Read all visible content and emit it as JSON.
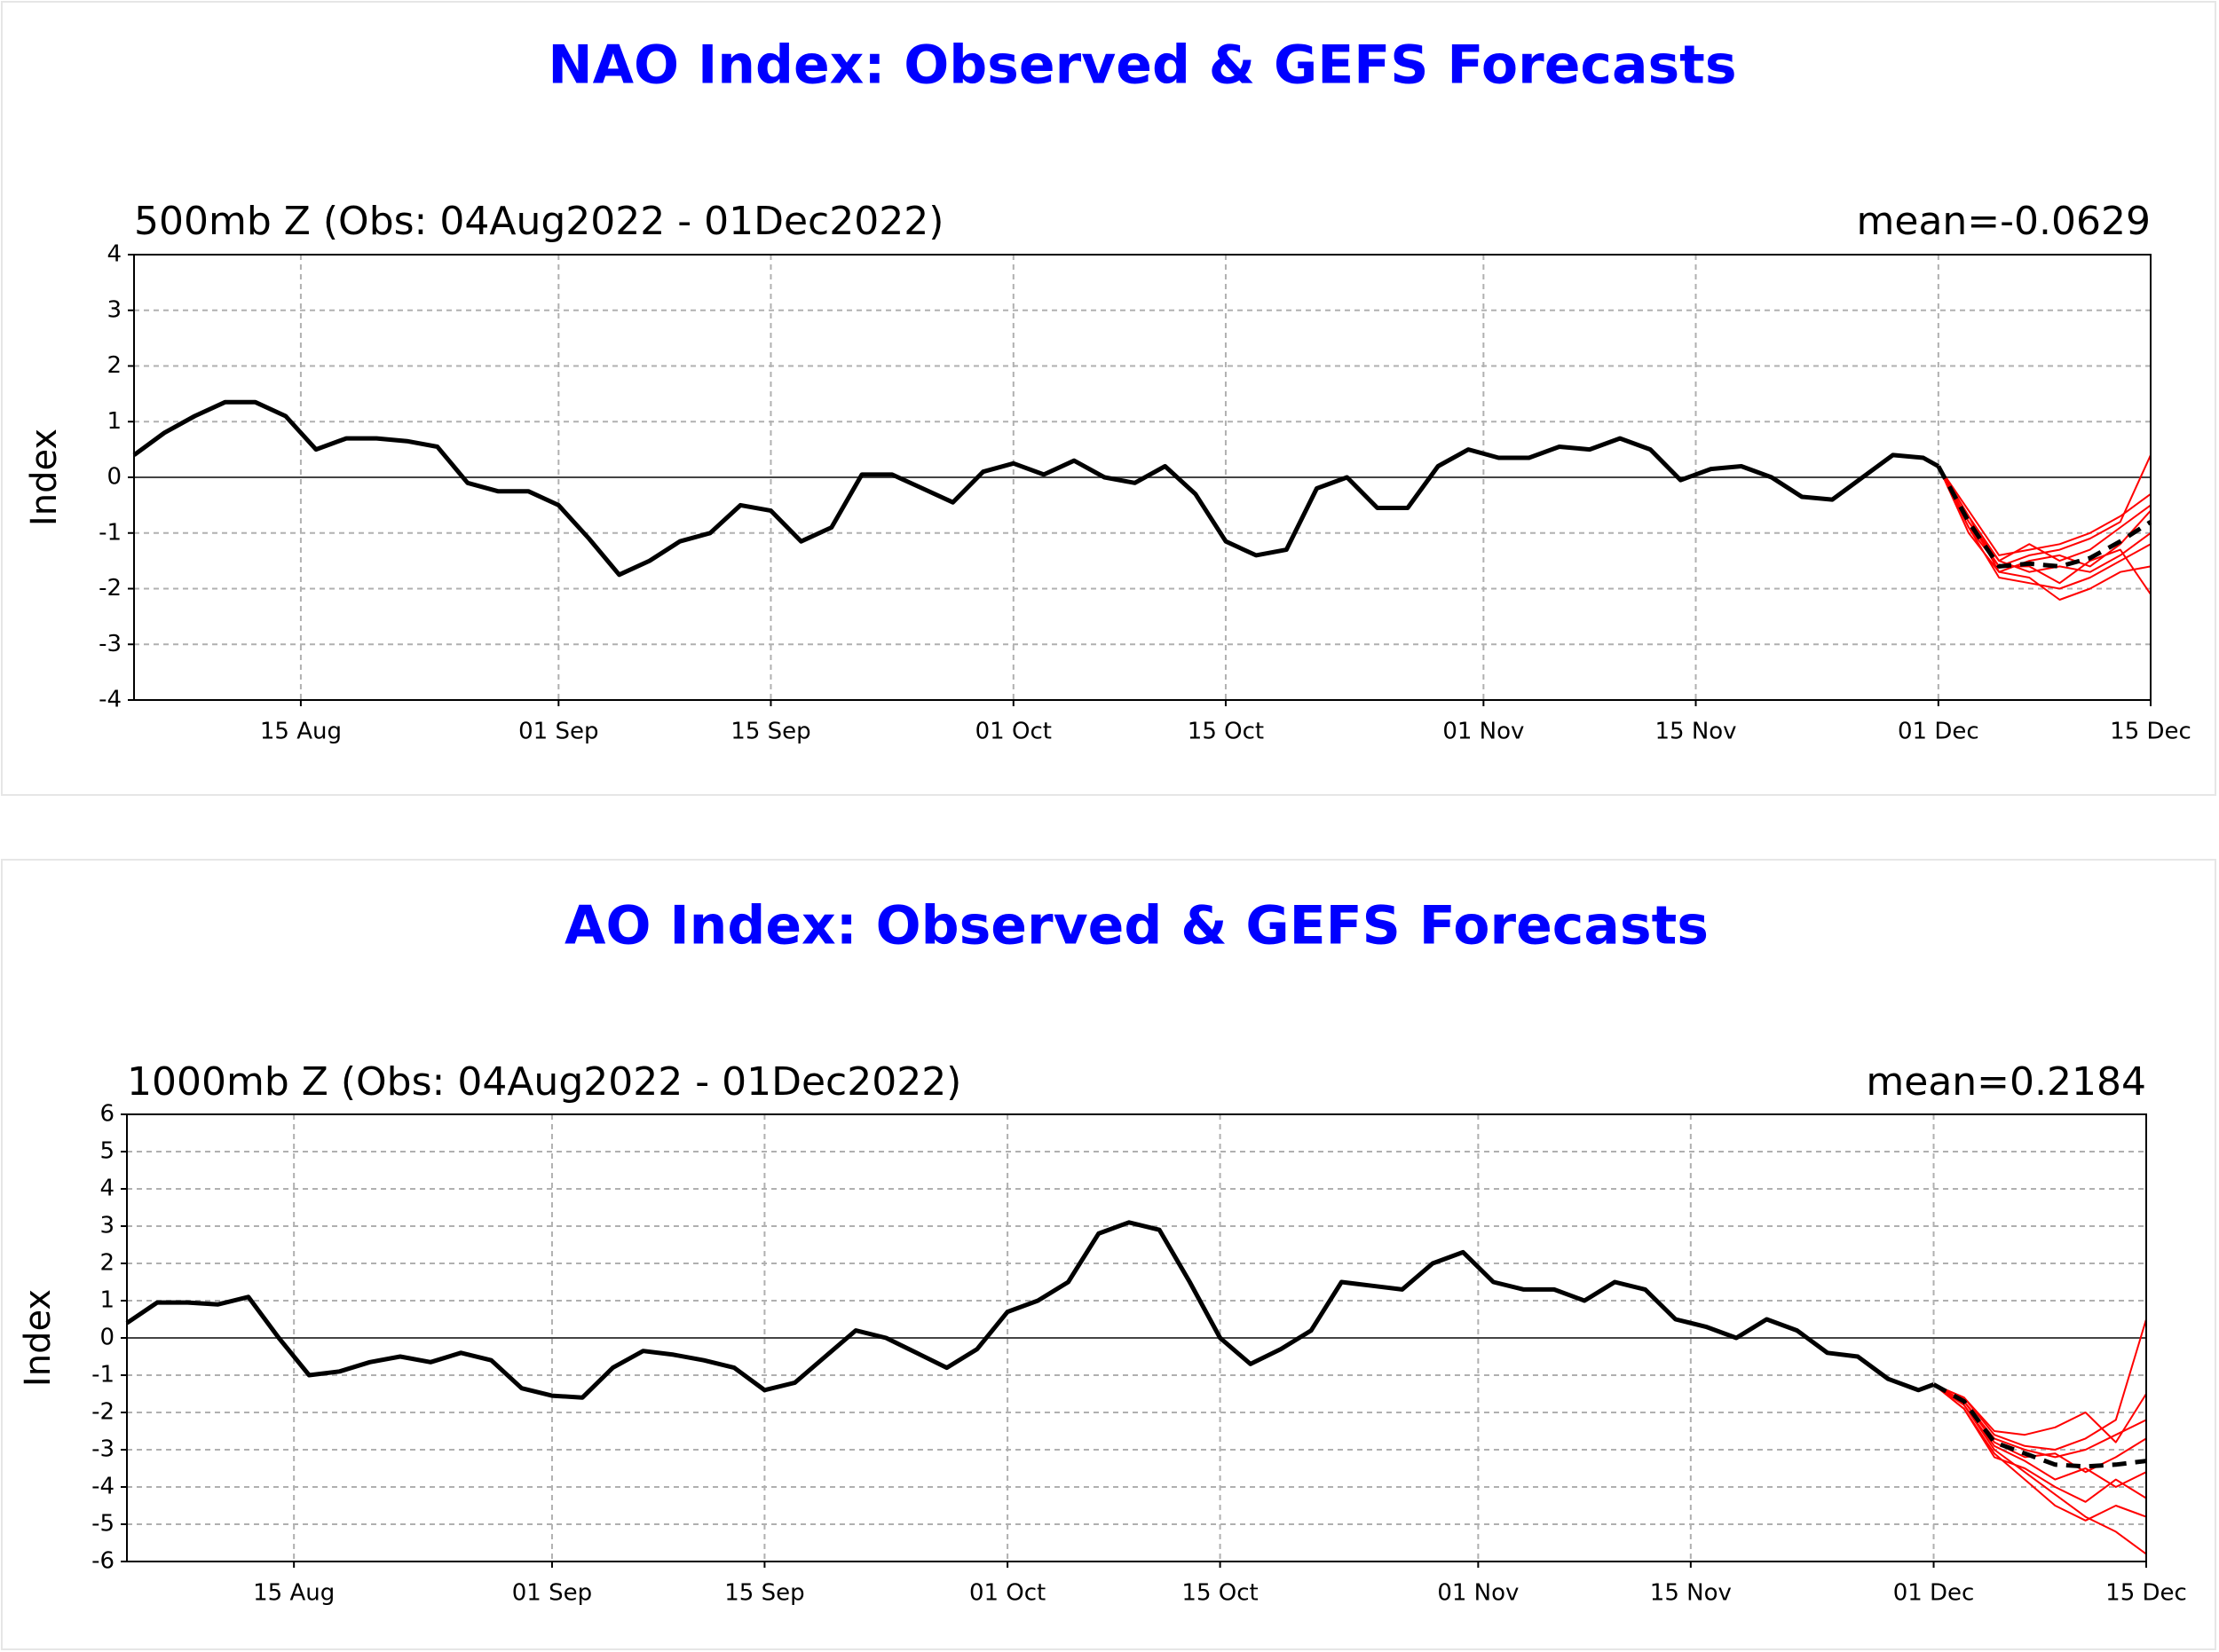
{
  "chart_data": [
    {
      "type": "line",
      "title": "NAO Index: Observed & GEFS Forecasts",
      "subtitle": "500mb Z (Obs: 04Aug2022 - 01Dec2022)",
      "annotation": "mean=-0.0629",
      "ylabel": "Index",
      "xlim": [
        "04 Aug",
        "15 Dec"
      ],
      "xticks": [
        "15 Aug",
        "01 Sep",
        "15 Sep",
        "01 Oct",
        "15 Oct",
        "01 Nov",
        "15 Nov",
        "01 Dec",
        "15 Dec"
      ],
      "ylim": [
        -4,
        4
      ],
      "yticks": [
        -4,
        -3,
        -2,
        -1,
        0,
        1,
        2,
        3,
        4
      ],
      "grid": true,
      "series": [
        {
          "color": "#ff0000",
          "x": [
            "01 Dec",
            "03 Dec",
            "05 Dec",
            "07 Dec",
            "09 Dec",
            "11 Dec",
            "13 Dec",
            "15 Dec"
          ],
          "values": [
            0.2,
            -0.6,
            -1.4,
            -1.3,
            -1.2,
            -1.0,
            -0.7,
            -0.3
          ]
        },
        {
          "color": "#ff0000",
          "x": [
            "01 Dec",
            "03 Dec",
            "05 Dec",
            "07 Dec",
            "09 Dec",
            "11 Dec",
            "13 Dec",
            "15 Dec"
          ],
          "values": [
            0.2,
            -0.9,
            -1.8,
            -1.9,
            -2.0,
            -1.8,
            -1.5,
            -1.2
          ]
        },
        {
          "color": "#ff0000",
          "x": [
            "01 Dec",
            "03 Dec",
            "05 Dec",
            "07 Dec",
            "09 Dec",
            "11 Dec",
            "13 Dec",
            "15 Dec"
          ],
          "values": [
            0.2,
            -0.7,
            -1.5,
            -1.2,
            -1.5,
            -1.3,
            -0.9,
            -0.5
          ]
        },
        {
          "color": "#ff0000",
          "x": [
            "01 Dec",
            "03 Dec",
            "05 Dec",
            "07 Dec",
            "09 Dec",
            "11 Dec",
            "13 Dec",
            "15 Dec"
          ],
          "values": [
            0.2,
            -1.0,
            -1.7,
            -1.8,
            -2.2,
            -2.0,
            -1.7,
            -1.6
          ]
        },
        {
          "color": "#ff0000",
          "x": [
            "01 Dec",
            "03 Dec",
            "05 Dec",
            "07 Dec",
            "09 Dec",
            "11 Dec",
            "13 Dec",
            "15 Dec"
          ],
          "values": [
            0.2,
            -0.8,
            -1.6,
            -1.4,
            -1.3,
            -1.1,
            -0.8,
            0.4
          ]
        },
        {
          "color": "#ff0000",
          "x": [
            "01 Dec",
            "03 Dec",
            "05 Dec",
            "07 Dec",
            "09 Dec",
            "11 Dec",
            "13 Dec",
            "15 Dec"
          ],
          "values": [
            0.2,
            -0.8,
            -1.5,
            -1.7,
            -1.6,
            -1.7,
            -1.4,
            -1.0
          ]
        },
        {
          "color": "#ff0000",
          "x": [
            "01 Dec",
            "03 Dec",
            "05 Dec",
            "07 Dec",
            "09 Dec",
            "11 Dec",
            "13 Dec",
            "15 Dec"
          ],
          "values": [
            0.2,
            -0.7,
            -1.7,
            -1.5,
            -1.4,
            -1.6,
            -1.2,
            -0.6
          ]
        },
        {
          "color": "#ff0000",
          "x": [
            "01 Dec",
            "03 Dec",
            "05 Dec",
            "07 Dec",
            "09 Dec",
            "11 Dec",
            "13 Dec",
            "15 Dec"
          ],
          "values": [
            0.2,
            -0.9,
            -1.6,
            -1.6,
            -1.9,
            -1.5,
            -1.3,
            -2.1
          ]
        },
        {
          "color": "#000000",
          "width": 5,
          "x": [
            "04 Aug",
            "06 Aug",
            "08 Aug",
            "10 Aug",
            "12 Aug",
            "14 Aug",
            "16 Aug",
            "18 Aug",
            "20 Aug",
            "22 Aug",
            "24 Aug",
            "26 Aug",
            "28 Aug",
            "30 Aug",
            "01 Sep",
            "03 Sep",
            "05 Sep",
            "07 Sep",
            "09 Sep",
            "11 Sep",
            "13 Sep",
            "15 Sep",
            "17 Sep",
            "19 Sep",
            "21 Sep",
            "23 Sep",
            "25 Sep",
            "27 Sep",
            "29 Sep",
            "01 Oct",
            "03 Oct",
            "05 Oct",
            "07 Oct",
            "09 Oct",
            "11 Oct",
            "13 Oct",
            "15 Oct",
            "17 Oct",
            "19 Oct",
            "21 Oct",
            "23 Oct",
            "25 Oct",
            "27 Oct",
            "29 Oct",
            "31 Oct",
            "02 Nov",
            "04 Nov",
            "06 Nov",
            "08 Nov",
            "10 Nov",
            "12 Nov",
            "14 Nov",
            "16 Nov",
            "18 Nov",
            "20 Nov",
            "22 Nov",
            "24 Nov",
            "26 Nov",
            "28 Nov",
            "30 Nov",
            "01 Dec"
          ],
          "values": [
            0.4,
            0.8,
            1.1,
            1.35,
            1.35,
            1.1,
            0.5,
            0.7,
            0.7,
            0.65,
            0.55,
            -0.1,
            -0.25,
            -0.25,
            -0.5,
            -1.1,
            -1.75,
            -1.5,
            -1.15,
            -1.0,
            -0.5,
            -0.6,
            -1.15,
            -0.9,
            0.05,
            0.05,
            -0.2,
            -0.45,
            0.1,
            0.25,
            0.05,
            0.3,
            0.0,
            -0.1,
            0.2,
            -0.3,
            -1.15,
            -1.4,
            -1.3,
            -0.2,
            0.0,
            -0.55,
            -0.55,
            0.2,
            0.5,
            0.35,
            0.35,
            0.55,
            0.5,
            0.7,
            0.5,
            -0.05,
            0.15,
            0.2,
            0.0,
            -0.35,
            -0.4,
            0.0,
            0.4,
            0.35,
            0.2
          ]
        },
        {
          "color": "#000000",
          "width": 5,
          "dashed": true,
          "x": [
            "01 Dec",
            "03 Dec",
            "05 Dec",
            "07 Dec",
            "09 Dec",
            "11 Dec",
            "13 Dec",
            "15 Dec"
          ],
          "values": [
            0.2,
            -0.8,
            -1.6,
            -1.55,
            -1.6,
            -1.45,
            -1.15,
            -0.8
          ]
        }
      ]
    },
    {
      "type": "line",
      "title": "AO Index: Observed & GEFS Forecasts",
      "subtitle": "1000mb Z (Obs: 04Aug2022 - 01Dec2022)",
      "annotation": "mean=0.2184",
      "ylabel": "Index",
      "xlim": [
        "04 Aug",
        "15 Dec"
      ],
      "xticks": [
        "15 Aug",
        "01 Sep",
        "15 Sep",
        "01 Oct",
        "15 Oct",
        "01 Nov",
        "15 Nov",
        "01 Dec",
        "15 Dec"
      ],
      "ylim": [
        -6,
        6
      ],
      "yticks": [
        -6,
        -5,
        -4,
        -3,
        -2,
        -1,
        0,
        1,
        2,
        3,
        4,
        5,
        6
      ],
      "grid": true,
      "series": [
        {
          "color": "#ff0000",
          "x": [
            "01 Dec",
            "03 Dec",
            "05 Dec",
            "07 Dec",
            "09 Dec",
            "11 Dec",
            "13 Dec",
            "15 Dec"
          ],
          "values": [
            -1.25,
            -1.6,
            -2.6,
            -2.9,
            -3.0,
            -2.7,
            -2.2,
            0.5
          ]
        },
        {
          "color": "#ff0000",
          "x": [
            "01 Dec",
            "03 Dec",
            "05 Dec",
            "07 Dec",
            "09 Dec",
            "11 Dec",
            "13 Dec",
            "15 Dec"
          ],
          "values": [
            -1.25,
            -1.8,
            -3.0,
            -3.6,
            -4.2,
            -4.8,
            -5.2,
            -5.8
          ]
        },
        {
          "color": "#ff0000",
          "x": [
            "01 Dec",
            "03 Dec",
            "05 Dec",
            "07 Dec",
            "09 Dec",
            "11 Dec",
            "13 Dec",
            "15 Dec"
          ],
          "values": [
            -1.25,
            -1.7,
            -2.7,
            -3.0,
            -3.2,
            -3.0,
            -2.6,
            -2.2
          ]
        },
        {
          "color": "#ff0000",
          "x": [
            "01 Dec",
            "03 Dec",
            "05 Dec",
            "07 Dec",
            "09 Dec",
            "11 Dec",
            "13 Dec",
            "15 Dec"
          ],
          "values": [
            -1.25,
            -1.9,
            -3.1,
            -3.8,
            -4.5,
            -4.9,
            -4.5,
            -4.8
          ]
        },
        {
          "color": "#ff0000",
          "x": [
            "01 Dec",
            "03 Dec",
            "05 Dec",
            "07 Dec",
            "09 Dec",
            "11 Dec",
            "13 Dec",
            "15 Dec"
          ],
          "values": [
            -1.25,
            -1.6,
            -2.5,
            -2.6,
            -2.4,
            -2.0,
            -2.8,
            -1.5
          ]
        },
        {
          "color": "#ff0000",
          "x": [
            "01 Dec",
            "03 Dec",
            "05 Dec",
            "07 Dec",
            "09 Dec",
            "11 Dec",
            "13 Dec",
            "15 Dec"
          ],
          "values": [
            -1.25,
            -1.8,
            -2.9,
            -3.3,
            -3.8,
            -3.5,
            -4.0,
            -3.6
          ]
        },
        {
          "color": "#ff0000",
          "x": [
            "01 Dec",
            "03 Dec",
            "05 Dec",
            "07 Dec",
            "09 Dec",
            "11 Dec",
            "13 Dec",
            "15 Dec"
          ],
          "values": [
            -1.25,
            -1.7,
            -2.8,
            -3.2,
            -3.1,
            -3.6,
            -3.2,
            -2.7
          ]
        },
        {
          "color": "#ff0000",
          "x": [
            "01 Dec",
            "03 Dec",
            "05 Dec",
            "07 Dec",
            "09 Dec",
            "11 Dec",
            "13 Dec",
            "15 Dec"
          ],
          "values": [
            -1.25,
            -1.9,
            -3.2,
            -3.5,
            -4.0,
            -4.4,
            -3.8,
            -4.3
          ]
        },
        {
          "color": "#000000",
          "width": 5,
          "x": [
            "04 Aug",
            "06 Aug",
            "08 Aug",
            "10 Aug",
            "12 Aug",
            "14 Aug",
            "16 Aug",
            "18 Aug",
            "20 Aug",
            "22 Aug",
            "24 Aug",
            "26 Aug",
            "28 Aug",
            "30 Aug",
            "01 Sep",
            "03 Sep",
            "05 Sep",
            "07 Sep",
            "09 Sep",
            "11 Sep",
            "13 Sep",
            "15 Sep",
            "17 Sep",
            "19 Sep",
            "21 Sep",
            "23 Sep",
            "25 Sep",
            "27 Sep",
            "29 Sep",
            "01 Oct",
            "03 Oct",
            "05 Oct",
            "07 Oct",
            "09 Oct",
            "11 Oct",
            "13 Oct",
            "15 Oct",
            "17 Oct",
            "19 Oct",
            "21 Oct",
            "23 Oct",
            "25 Oct",
            "27 Oct",
            "29 Oct",
            "31 Oct",
            "02 Nov",
            "04 Nov",
            "06 Nov",
            "08 Nov",
            "10 Nov",
            "12 Nov",
            "14 Nov",
            "16 Nov",
            "18 Nov",
            "20 Nov",
            "22 Nov",
            "24 Nov",
            "26 Nov",
            "28 Nov",
            "30 Nov",
            "01 Dec"
          ],
          "values": [
            0.4,
            0.95,
            0.95,
            0.9,
            1.1,
            0.0,
            -1.0,
            -0.9,
            -0.65,
            -0.5,
            -0.65,
            -0.4,
            -0.6,
            -1.35,
            -1.55,
            -1.6,
            -0.8,
            -0.35,
            -0.45,
            -0.6,
            -0.8,
            -1.4,
            -1.2,
            -0.5,
            0.2,
            0.0,
            -0.4,
            -0.8,
            -0.3,
            0.7,
            1.0,
            1.5,
            2.8,
            3.1,
            2.9,
            1.5,
            0.0,
            -0.7,
            -0.3,
            0.2,
            1.5,
            1.4,
            1.3,
            2.0,
            2.3,
            1.5,
            1.3,
            1.3,
            1.0,
            1.5,
            1.3,
            0.5,
            0.3,
            0.0,
            0.5,
            0.2,
            -0.4,
            -0.5,
            -1.1,
            -1.4,
            -1.25
          ]
        },
        {
          "color": "#000000",
          "width": 5,
          "dashed": true,
          "x": [
            "01 Dec",
            "03 Dec",
            "05 Dec",
            "07 Dec",
            "09 Dec",
            "11 Dec",
            "13 Dec",
            "15 Dec"
          ],
          "values": [
            -1.25,
            -1.7,
            -2.8,
            -3.1,
            -3.4,
            -3.45,
            -3.4,
            -3.3
          ]
        }
      ]
    }
  ]
}
